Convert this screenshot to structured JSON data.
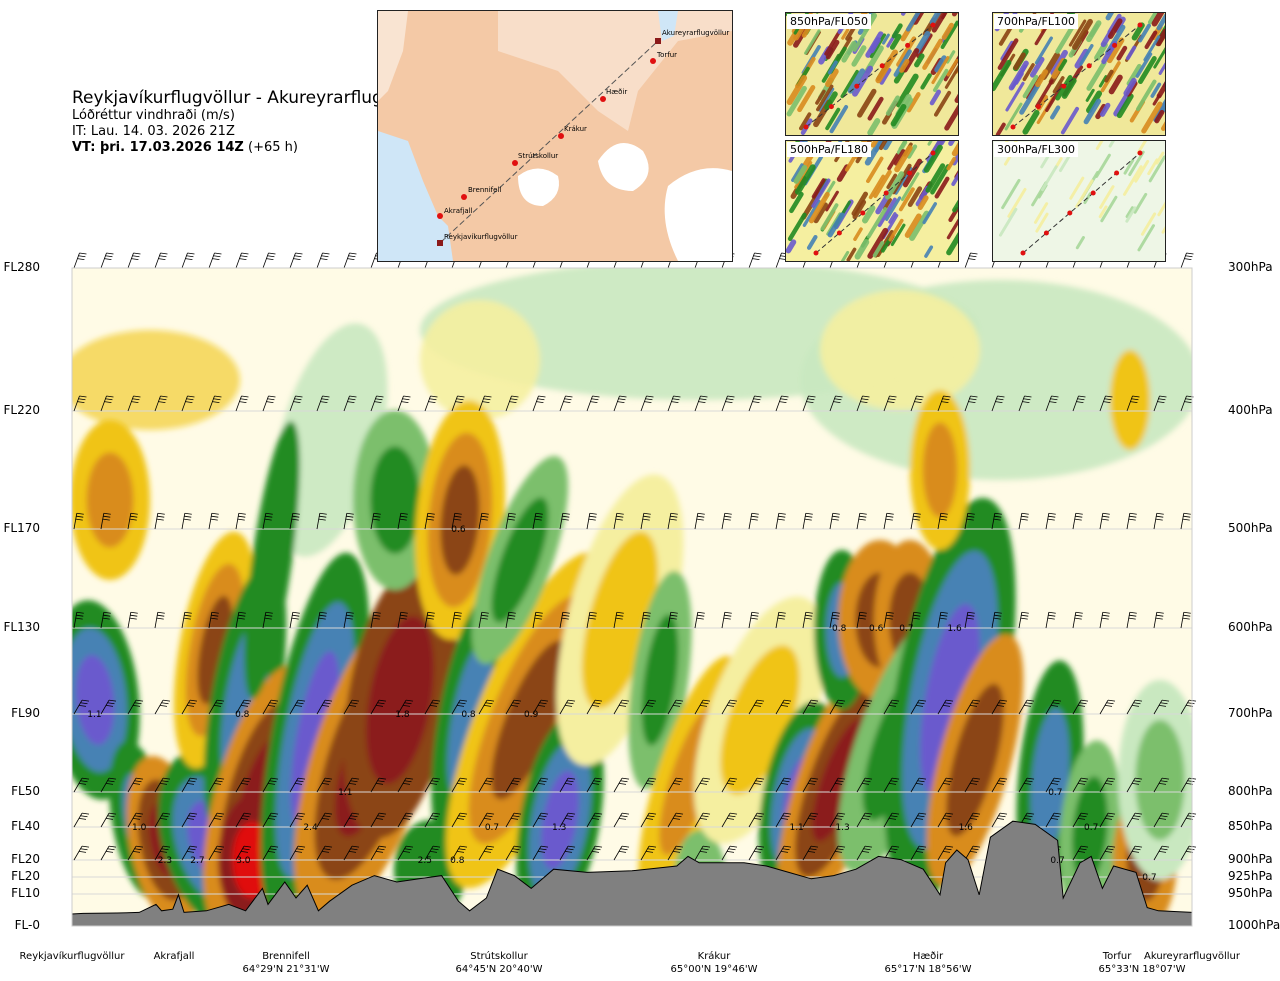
{
  "header": {
    "title": "Reykjavíkurflugvöllur - Akureyrarflugvöllur",
    "subtitle": "Lóðréttur vindhraði (m/s)",
    "init_time": "IT: Lau. 14. 03. 2026 21Z",
    "valid_label": "VT: þri. 17.03.2026 14Z",
    "valid_offset": "(+65 h)"
  },
  "route_map": {
    "places": [
      "Akureyrarflugvöllur",
      "Torfur",
      "Hæðir",
      "Krákur",
      "Strútskollur",
      "Brennifell",
      "Akrafjall",
      "Reykjavíkurflugvöllur"
    ]
  },
  "insets": [
    {
      "label": "850hPa/FL050"
    },
    {
      "label": "700hPa/FL100"
    },
    {
      "label": "500hPa/FL180"
    },
    {
      "label": "300hPa/FL300"
    }
  ],
  "colors": {
    "strong_up": "#6a5acd",
    "mid_up": "#4682b4",
    "up": "#228b22",
    "weak_up": "#7cbf6c",
    "faint_up": "#c9e8c0",
    "neutral": "#fffbe6",
    "faint_down": "#f5efa0",
    "weak_down": "#f0c419",
    "down": "#d98c1f",
    "mid_down": "#8b4513",
    "strong_down": "#8b1a1a",
    "extreme_down": "#e01010",
    "terrain": "#808080"
  },
  "chart_data": {
    "type": "heatmap",
    "variable": "Lóðréttur vindhraði (m/s)",
    "flight_levels": [
      {
        "fl": "FL280",
        "hpa": "300hPa"
      },
      {
        "fl": "FL220",
        "hpa": "400hPa"
      },
      {
        "fl": "FL170",
        "hpa": "500hPa"
      },
      {
        "fl": "FL130",
        "hpa": "600hPa"
      },
      {
        "fl": "FL90",
        "hpa": "700hPa"
      },
      {
        "fl": "FL50",
        "hpa": "800hPa"
      },
      {
        "fl": "FL40",
        "hpa": "850hPa"
      },
      {
        "fl": "FL20",
        "hpa": "900hPa"
      },
      {
        "fl": "FL20",
        "hpa": "925hPa"
      },
      {
        "fl": "FL10",
        "hpa": "950hPa"
      },
      {
        "fl": "FL-0",
        "hpa": "1000hPa"
      }
    ],
    "locations": [
      {
        "name": "Reykjavíkurflugvöllur",
        "coord": ""
      },
      {
        "name": "Akrafjall",
        "coord": ""
      },
      {
        "name": "Brennifell",
        "coord": "64°29'N 21°31'W"
      },
      {
        "name": "Strútskollur",
        "coord": "64°45'N 20°40'W"
      },
      {
        "name": "Krákur",
        "coord": "65°00'N 19°46'W"
      },
      {
        "name": "Hæðir",
        "coord": "65°17'N 18°56'W"
      },
      {
        "name": "Torfur",
        "coord": "65°33'N 18°07'W"
      },
      {
        "name": "Akureyrarflugvöllur",
        "coord": ""
      }
    ],
    "value_labels": [
      {
        "text": "1.1",
        "dist": 0.02,
        "hpa": 700
      },
      {
        "text": "1.0",
        "dist": 0.06,
        "hpa": 850
      },
      {
        "text": "2.3",
        "dist": 0.083,
        "hpa": 900
      },
      {
        "text": "2.7",
        "dist": 0.112,
        "hpa": 900
      },
      {
        "text": "0.8",
        "dist": 0.152,
        "hpa": 700
      },
      {
        "text": "3.0",
        "dist": 0.153,
        "hpa": 900
      },
      {
        "text": "2.4",
        "dist": 0.213,
        "hpa": 850
      },
      {
        "text": "1.1",
        "dist": 0.244,
        "hpa": 800
      },
      {
        "text": "1.8",
        "dist": 0.295,
        "hpa": 700
      },
      {
        "text": "2.5",
        "dist": 0.315,
        "hpa": 900
      },
      {
        "text": "0.8",
        "dist": 0.344,
        "hpa": 900
      },
      {
        "text": "0.6",
        "dist": 0.345,
        "hpa": 500
      },
      {
        "text": "0.8",
        "dist": 0.354,
        "hpa": 700
      },
      {
        "text": "0.7",
        "dist": 0.375,
        "hpa": 850
      },
      {
        "text": "0.9",
        "dist": 0.41,
        "hpa": 700
      },
      {
        "text": "1.3",
        "dist": 0.435,
        "hpa": 850
      },
      {
        "text": "1.1",
        "dist": 0.647,
        "hpa": 850
      },
      {
        "text": "1.3",
        "dist": 0.688,
        "hpa": 850
      },
      {
        "text": "0.8",
        "dist": 0.685,
        "hpa": 600
      },
      {
        "text": "0.6",
        "dist": 0.718,
        "hpa": 600
      },
      {
        "text": "0.7",
        "dist": 0.745,
        "hpa": 600
      },
      {
        "text": "1.6",
        "dist": 0.788,
        "hpa": 600
      },
      {
        "text": "1.6",
        "dist": 0.798,
        "hpa": 850
      },
      {
        "text": "0.7",
        "dist": 0.878,
        "hpa": 800
      },
      {
        "text": "0.7",
        "dist": 0.88,
        "hpa": 900
      },
      {
        "text": "0.7",
        "dist": 0.91,
        "hpa": 850
      },
      {
        "text": "0.7",
        "dist": 0.962,
        "hpa": 925
      }
    ]
  }
}
